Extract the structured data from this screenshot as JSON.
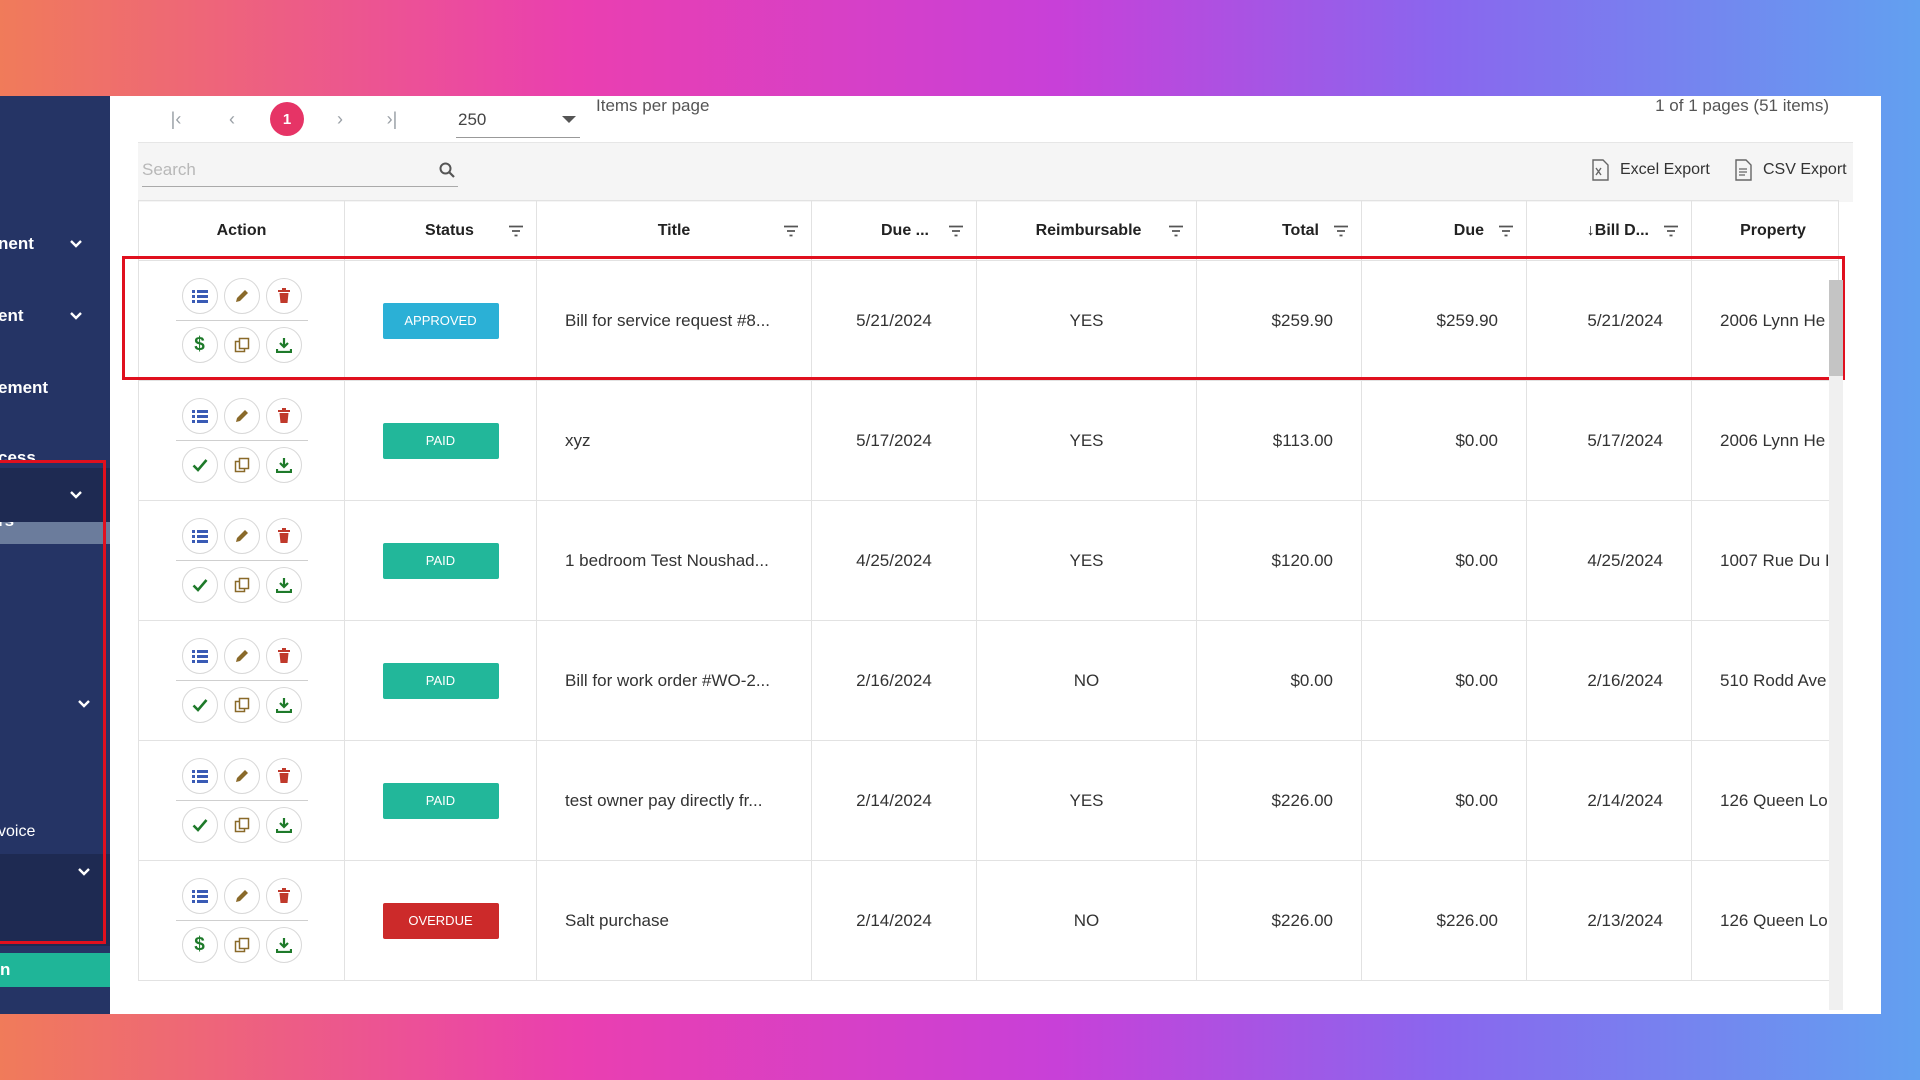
{
  "sidebar": {
    "items": [
      {
        "label": "nent",
        "chevron": true
      },
      {
        "label": "ent",
        "chevron": true
      },
      {
        "label": "ement",
        "chevron": false
      },
      {
        "label": "cess",
        "chevron": false
      },
      {
        "label": "rs",
        "chevron": false
      },
      {
        "label": "",
        "chevron": true
      },
      {
        "label": "",
        "chevron": true
      },
      {
        "label": "voice",
        "chevron": false
      },
      {
        "label": "",
        "chevron": true
      }
    ],
    "green_label": "n"
  },
  "pager": {
    "current_page": "1",
    "page_size": "250",
    "items_per_page_label": "Items per page",
    "info": "1 of 1 pages (51 items)"
  },
  "toolbar": {
    "search_placeholder": "Search",
    "excel_export": "Excel Export",
    "csv_export": "CSV Export"
  },
  "table": {
    "headers": {
      "action": "Action",
      "status": "Status",
      "title": "Title",
      "due_date": "Due ...",
      "reimbursable": "Reimbursable",
      "total": "Total",
      "due": "Due",
      "bill_date": "↓Bill D...",
      "property": "Property"
    },
    "rows": [
      {
        "status": "APPROVED",
        "status_color": "#2bb0d6",
        "first_action": "dollar",
        "title": "Bill for service request #8...",
        "due_date": "5/21/2024",
        "reimbursable": "YES",
        "total": "$259.90",
        "due": "$259.90",
        "bill_date": "5/21/2024",
        "property": "2006 Lynn He"
      },
      {
        "status": "PAID",
        "status_color": "#22b79a",
        "first_action": "check",
        "title": "xyz",
        "due_date": "5/17/2024",
        "reimbursable": "YES",
        "total": "$113.00",
        "due": "$0.00",
        "bill_date": "5/17/2024",
        "property": "2006 Lynn He"
      },
      {
        "status": "PAID",
        "status_color": "#22b79a",
        "first_action": "check",
        "title": "1 bedroom Test Noushad...",
        "due_date": "4/25/2024",
        "reimbursable": "YES",
        "total": "$120.00",
        "due": "$0.00",
        "bill_date": "4/25/2024",
        "property": "1007 Rue Du I"
      },
      {
        "status": "PAID",
        "status_color": "#22b79a",
        "first_action": "check",
        "title": "Bill for work order #WO-2...",
        "due_date": "2/16/2024",
        "reimbursable": "NO",
        "total": "$0.00",
        "due": "$0.00",
        "bill_date": "2/16/2024",
        "property": "510 Rodd Ave"
      },
      {
        "status": "PAID",
        "status_color": "#22b79a",
        "first_action": "check",
        "title": "test owner pay directly fr...",
        "due_date": "2/14/2024",
        "reimbursable": "YES",
        "total": "$226.00",
        "due": "$0.00",
        "bill_date": "2/14/2024",
        "property": "126 Queen Lo"
      },
      {
        "status": "OVERDUE",
        "status_color": "#cc2a2a",
        "first_action": "dollar",
        "title": "Salt purchase",
        "due_date": "2/14/2024",
        "reimbursable": "NO",
        "total": "$226.00",
        "due": "$226.00",
        "bill_date": "2/13/2024",
        "property": "126 Queen Lo"
      }
    ]
  },
  "icons": {
    "details": "list-icon",
    "edit": "pencil-icon",
    "delete": "trash-icon",
    "pay": "dollar-icon",
    "mark_paid": "check-icon",
    "copy": "copy-icon",
    "download": "download-icon"
  },
  "colors": {
    "sidebar": "#253465",
    "page_badge": "#e63466",
    "approved": "#2bb0d6",
    "paid": "#22b79a",
    "overdue": "#cc2a2a",
    "highlight": "#e0101e"
  }
}
